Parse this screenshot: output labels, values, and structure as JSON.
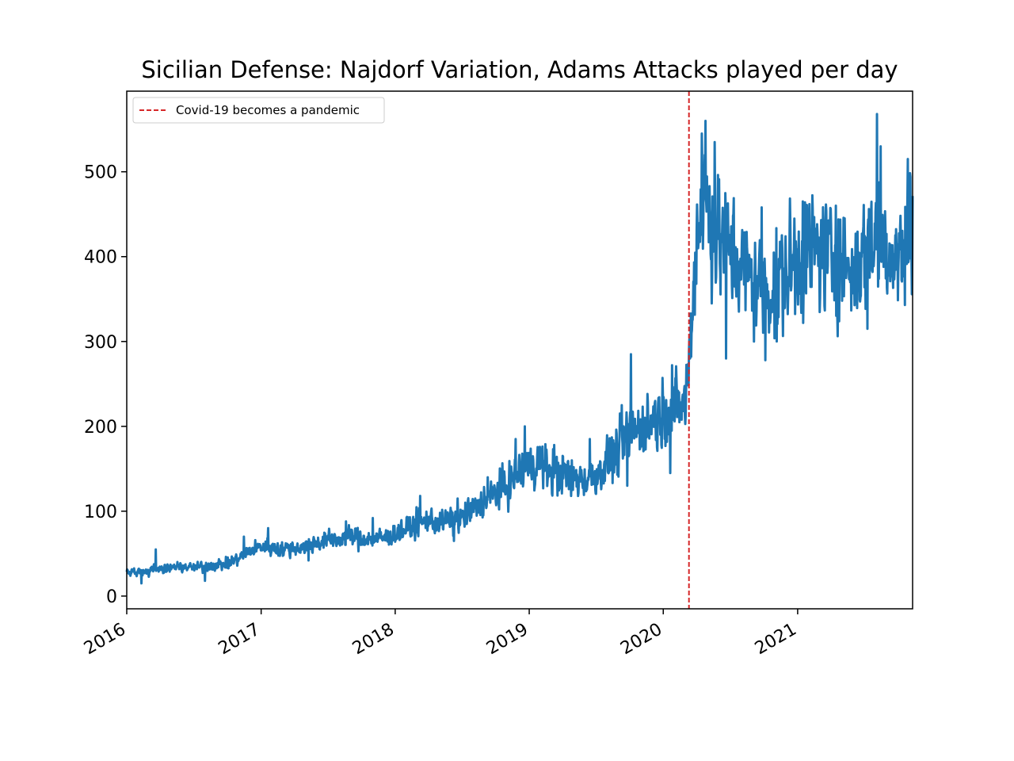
{
  "chart_data": {
    "type": "line",
    "title": "Sicilian Defense: Najdorf Variation, Adams Attacks played per day",
    "xlabel": "",
    "ylabel": "",
    "x_range": [
      "2016-01-01",
      "2021-11-10"
    ],
    "ylim": [
      -15,
      595
    ],
    "x_ticks": [
      {
        "date": "2016-01-01",
        "label": "2016"
      },
      {
        "date": "2017-01-01",
        "label": "2017"
      },
      {
        "date": "2018-01-01",
        "label": "2018"
      },
      {
        "date": "2019-01-01",
        "label": "2019"
      },
      {
        "date": "2020-01-01",
        "label": "2020"
      },
      {
        "date": "2021-01-01",
        "label": "2021"
      }
    ],
    "y_ticks": [
      {
        "value": 0,
        "label": "0"
      },
      {
        "value": 100,
        "label": "100"
      },
      {
        "value": 200,
        "label": "200"
      },
      {
        "value": 300,
        "label": "300"
      },
      {
        "value": 400,
        "label": "400"
      },
      {
        "value": 500,
        "label": "500"
      }
    ],
    "grid": false,
    "legend_position": "top-left",
    "series": [
      {
        "name": "",
        "color": "#1f77b4",
        "points": [
          [
            "2016-01-01",
            28
          ],
          [
            "2016-02-01",
            27
          ],
          [
            "2016-03-01",
            29
          ],
          [
            "2016-04-01",
            32
          ],
          [
            "2016-05-01",
            34
          ],
          [
            "2016-06-01",
            34
          ],
          [
            "2016-07-01",
            33
          ],
          [
            "2016-08-01",
            35
          ],
          [
            "2016-09-01",
            36
          ],
          [
            "2016-10-01",
            38
          ],
          [
            "2016-11-01",
            44
          ],
          [
            "2016-12-01",
            52
          ],
          [
            "2017-01-01",
            58
          ],
          [
            "2017-02-01",
            56
          ],
          [
            "2017-03-01",
            55
          ],
          [
            "2017-04-01",
            56
          ],
          [
            "2017-05-01",
            58
          ],
          [
            "2017-06-01",
            62
          ],
          [
            "2017-07-01",
            65
          ],
          [
            "2017-08-01",
            67
          ],
          [
            "2017-09-01",
            70
          ],
          [
            "2017-10-01",
            68
          ],
          [
            "2017-11-01",
            66
          ],
          [
            "2017-12-01",
            68
          ],
          [
            "2018-01-01",
            72
          ],
          [
            "2018-02-01",
            78
          ],
          [
            "2018-03-01",
            84
          ],
          [
            "2018-04-01",
            88
          ],
          [
            "2018-05-01",
            86
          ],
          [
            "2018-06-01",
            88
          ],
          [
            "2018-07-01",
            90
          ],
          [
            "2018-08-01",
            100
          ],
          [
            "2018-09-01",
            112
          ],
          [
            "2018-10-01",
            120
          ],
          [
            "2018-11-01",
            128
          ],
          [
            "2018-12-01",
            142
          ],
          [
            "2019-01-01",
            152
          ],
          [
            "2019-02-01",
            155
          ],
          [
            "2019-03-01",
            145
          ],
          [
            "2019-04-01",
            142
          ],
          [
            "2019-05-01",
            138
          ],
          [
            "2019-06-01",
            136
          ],
          [
            "2019-07-01",
            140
          ],
          [
            "2019-08-01",
            155
          ],
          [
            "2019-09-01",
            168
          ],
          [
            "2019-10-01",
            190
          ],
          [
            "2019-11-01",
            195
          ],
          [
            "2019-12-01",
            205
          ],
          [
            "2020-01-01",
            215
          ],
          [
            "2020-02-01",
            218
          ],
          [
            "2020-03-01",
            225
          ],
          [
            "2020-03-15",
            290
          ],
          [
            "2020-04-01",
            420
          ],
          [
            "2020-04-20",
            470
          ],
          [
            "2020-05-10",
            440
          ],
          [
            "2020-06-01",
            420
          ],
          [
            "2020-07-01",
            400
          ],
          [
            "2020-08-01",
            385
          ],
          [
            "2020-09-01",
            370
          ],
          [
            "2020-10-01",
            355
          ],
          [
            "2020-11-01",
            360
          ],
          [
            "2020-12-01",
            375
          ],
          [
            "2021-01-01",
            395
          ],
          [
            "2021-02-01",
            400
          ],
          [
            "2021-03-01",
            405
          ],
          [
            "2021-04-01",
            395
          ],
          [
            "2021-05-01",
            390
          ],
          [
            "2021-06-01",
            380
          ],
          [
            "2021-07-01",
            400
          ],
          [
            "2021-08-01",
            420
          ],
          [
            "2021-09-01",
            410
          ],
          [
            "2021-10-01",
            395
          ],
          [
            "2021-11-01",
            420
          ]
        ],
        "spikes": [
          [
            "2016-03-20",
            55
          ],
          [
            "2016-11-15",
            70
          ],
          [
            "2017-01-20",
            80
          ],
          [
            "2017-08-20",
            88
          ],
          [
            "2017-11-01",
            92
          ],
          [
            "2018-03-10",
            118
          ],
          [
            "2018-06-20",
            115
          ],
          [
            "2018-09-10",
            140
          ],
          [
            "2018-11-25",
            185
          ],
          [
            "2018-12-20",
            200
          ],
          [
            "2019-03-10",
            178
          ],
          [
            "2019-06-15",
            185
          ],
          [
            "2019-09-10",
            225
          ],
          [
            "2019-10-05",
            285
          ],
          [
            "2019-12-10",
            230
          ],
          [
            "2020-01-25",
            272
          ],
          [
            "2020-04-15",
            545
          ],
          [
            "2020-04-25",
            560
          ],
          [
            "2020-05-20",
            535
          ],
          [
            "2020-07-10",
            450
          ],
          [
            "2020-09-25",
            458
          ],
          [
            "2021-01-15",
            465
          ],
          [
            "2021-04-15",
            460
          ],
          [
            "2021-08-05",
            568
          ],
          [
            "2021-08-15",
            530
          ],
          [
            "2021-10-28",
            515
          ]
        ],
        "dips": [
          [
            "2016-02-10",
            15
          ],
          [
            "2016-08-01",
            18
          ],
          [
            "2017-05-10",
            42
          ],
          [
            "2018-06-10",
            65
          ],
          [
            "2019-04-25",
            118
          ],
          [
            "2019-09-25",
            130
          ],
          [
            "2020-01-20",
            145
          ],
          [
            "2020-06-20",
            280
          ],
          [
            "2020-10-05",
            278
          ],
          [
            "2020-11-05",
            300
          ],
          [
            "2021-07-10",
            315
          ],
          [
            "2021-10-20",
            343
          ]
        ],
        "noise_scale": 0.11
      }
    ],
    "annotations": [
      {
        "type": "vline",
        "date": "2020-03-11",
        "color": "#d62728",
        "style": "dashed",
        "label": "Covid-19 becomes a pandemic"
      }
    ]
  }
}
